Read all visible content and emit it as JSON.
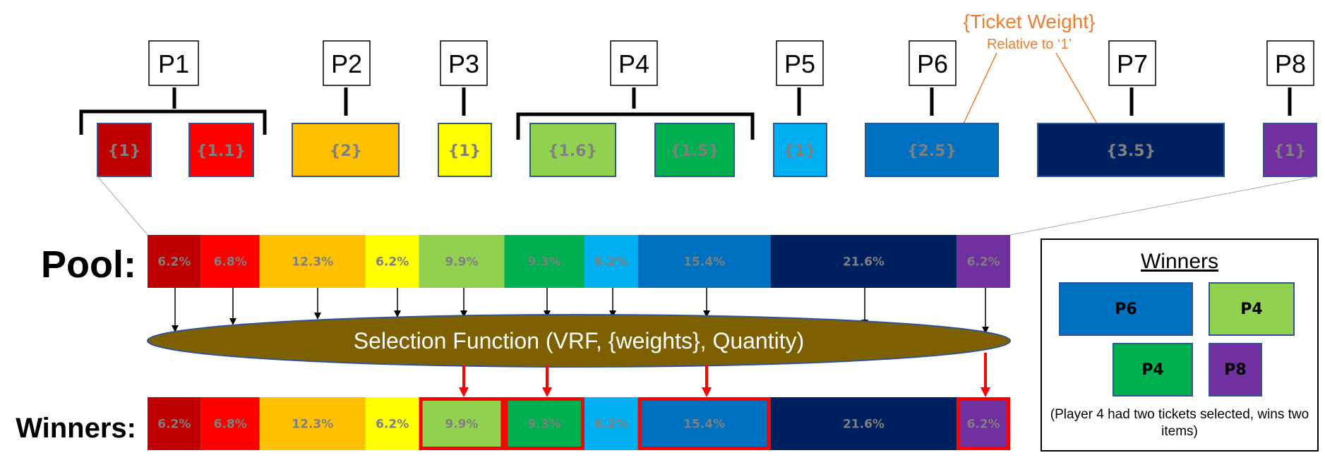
{
  "annotation": {
    "title": "{Ticket Weight}",
    "subtitle": "Relative to ‘1’"
  },
  "players": [
    {
      "label": "P1",
      "tickets": [
        {
          "weight": "{1}",
          "color": "#C00000"
        },
        {
          "weight": "{1.1}",
          "color": "#FF0000"
        }
      ]
    },
    {
      "label": "P2",
      "tickets": [
        {
          "weight": "{2}",
          "color": "#FFC000"
        }
      ]
    },
    {
      "label": "P3",
      "tickets": [
        {
          "weight": "{1}",
          "color": "#FFFF00"
        }
      ]
    },
    {
      "label": "P4",
      "tickets": [
        {
          "weight": "{1.6}",
          "color": "#92D050"
        },
        {
          "weight": "{1.5}",
          "color": "#00B050"
        }
      ]
    },
    {
      "label": "P5",
      "tickets": [
        {
          "weight": "{1}",
          "color": "#00B0F0"
        }
      ]
    },
    {
      "label": "P6",
      "tickets": [
        {
          "weight": "{2.5}",
          "color": "#0070C0"
        }
      ]
    },
    {
      "label": "P7",
      "tickets": [
        {
          "weight": "{3.5}",
          "color": "#002060"
        }
      ]
    },
    {
      "label": "P8",
      "tickets": [
        {
          "weight": "{1}",
          "color": "#7030A0"
        }
      ]
    }
  ],
  "pool": {
    "label": "Pool:",
    "segments": [
      {
        "percent": "6.2%",
        "color": "#C00000"
      },
      {
        "percent": "6.8%",
        "color": "#FF0000"
      },
      {
        "percent": "12.3%",
        "color": "#FFC000"
      },
      {
        "percent": "6.2%",
        "color": "#FFFF00"
      },
      {
        "percent": "9.9%",
        "color": "#92D050"
      },
      {
        "percent": "9.3%",
        "color": "#00B050"
      },
      {
        "percent": "6.2%",
        "color": "#00B0F0"
      },
      {
        "percent": "15.4%",
        "color": "#0070C0"
      },
      {
        "percent": "21.6%",
        "color": "#002060"
      },
      {
        "percent": "6.2%",
        "color": "#7030A0"
      }
    ]
  },
  "selection_function": {
    "label": "Selection Function (VRF, {weights}, Quantity)",
    "color": "#7F6000"
  },
  "winners_bar": {
    "label": "Winners:",
    "selected_indices": [
      4,
      5,
      7,
      9
    ]
  },
  "winners_panel": {
    "title": "Winners",
    "tiles": [
      {
        "label": "P6",
        "color": "#0070C0"
      },
      {
        "label": "P4",
        "color": "#92D050"
      },
      {
        "label": "P4",
        "color": "#00B050"
      },
      {
        "label": "P8",
        "color": "#7030A0"
      }
    ],
    "note": "(Player 4 had two tickets selected, wins two items)"
  },
  "colors": {
    "annotation": "#ED7D31",
    "highlight": "#FF0000",
    "segment_text": "#7F7F7F",
    "ticket_border": "#2F5597"
  }
}
